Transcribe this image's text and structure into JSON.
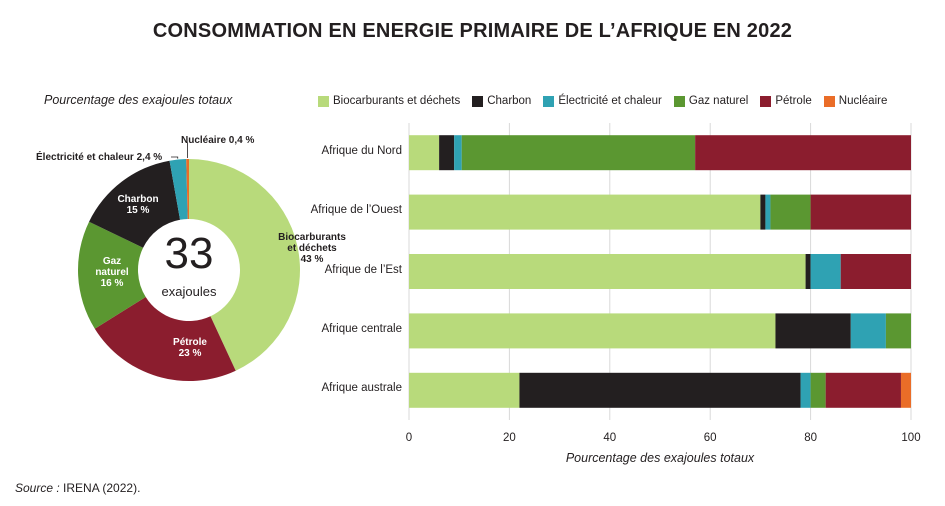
{
  "title": "CONSOMMATION EN ENERGIE PRIMAIRE DE L’AFRIQUE EN 2022",
  "source_label": "Source :",
  "source_text": " IRENA (2022).",
  "colors": {
    "biocarburants": "#b8da7b",
    "charbon": "#231f20",
    "electricite": "#2fa2b3",
    "gaz": "#5b9731",
    "petrole": "#8b1d2e",
    "nucleaire": "#ea6d28"
  },
  "chart_data": [
    {
      "type": "pie",
      "subtitle": "Pourcentage des exajoules totaux",
      "center_value": "33",
      "center_unit": "exajoules",
      "slices": [
        {
          "key": "biocarburants",
          "label": "Biocarburants\net déchets\n43 %",
          "value": 43
        },
        {
          "key": "petrole",
          "label": "Pétrole\n23 %",
          "value": 23
        },
        {
          "key": "gaz",
          "label": "Gaz\nnaturel\n16 %",
          "value": 16
        },
        {
          "key": "charbon",
          "label": "Charbon\n15 %",
          "value": 15
        },
        {
          "key": "electricite",
          "label": "Électricité et chaleur 2,4 %",
          "value": 2.4
        },
        {
          "key": "nucleaire",
          "label": "Nucléaire 0,4 %",
          "value": 0.4
        }
      ]
    },
    {
      "type": "bar",
      "orientation": "horizontal",
      "stacked": true,
      "xlabel": "Pourcentage des exajoules totaux",
      "xlim": [
        0,
        100
      ],
      "xticks": [
        0,
        20,
        40,
        60,
        80,
        100
      ],
      "legend_position": "top",
      "categories": [
        "Afrique du Nord",
        "Afrique de l’Ouest",
        "Afrique de l’Est",
        "Afrique centrale",
        "Afrique australe"
      ],
      "series": [
        {
          "key": "biocarburants",
          "name": "Biocarburants et déchets",
          "values": [
            6,
            70,
            79,
            73,
            22
          ]
        },
        {
          "key": "charbon",
          "name": "Charbon",
          "values": [
            3,
            1,
            1,
            15,
            56
          ]
        },
        {
          "key": "electricite",
          "name": "Électricité et chaleur",
          "values": [
            1.5,
            1,
            6,
            7,
            2
          ]
        },
        {
          "key": "gaz",
          "name": "Gaz naturel",
          "values": [
            46.5,
            8,
            0,
            5,
            3
          ]
        },
        {
          "key": "petrole",
          "name": "Pétrole",
          "values": [
            43,
            20,
            14,
            0,
            15
          ]
        },
        {
          "key": "nucleaire",
          "name": "Nucléaire",
          "values": [
            0,
            0,
            0,
            0,
            2
          ]
        }
      ]
    }
  ]
}
